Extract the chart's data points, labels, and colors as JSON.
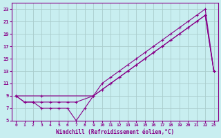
{
  "xlabel": "Windchill (Refroidissement éolien,°C)",
  "bg_color": "#c8eef0",
  "line_color": "#880088",
  "grid_color": "#aacccc",
  "xlim": [
    -0.5,
    23.5
  ],
  "ylim": [
    5,
    24
  ],
  "yticks": [
    5,
    7,
    9,
    11,
    13,
    15,
    17,
    19,
    21,
    23
  ],
  "xticks": [
    0,
    1,
    2,
    3,
    4,
    5,
    6,
    7,
    8,
    9,
    10,
    11,
    12,
    13,
    14,
    15,
    16,
    17,
    18,
    19,
    20,
    21,
    22,
    23
  ],
  "line1_x": [
    0,
    1,
    2,
    3,
    4,
    5,
    6,
    7,
    8,
    9,
    10,
    11,
    12,
    13,
    14,
    15,
    16,
    17,
    18,
    19,
    20,
    21,
    22,
    23
  ],
  "line1_y": [
    9,
    8,
    8,
    7,
    7,
    7,
    7,
    5,
    7,
    9,
    10,
    11,
    12,
    13,
    14,
    15,
    16,
    17,
    18,
    19,
    20,
    21,
    22,
    13
  ],
  "line2_x": [
    0,
    1,
    2,
    3,
    4,
    5,
    6,
    7,
    9,
    10,
    11,
    12,
    13,
    14,
    15,
    16,
    17,
    18,
    19,
    20,
    21,
    22,
    23
  ],
  "line2_y": [
    9,
    8,
    8,
    8,
    8,
    8,
    8,
    8,
    9,
    11,
    12,
    13,
    14,
    15,
    16,
    17,
    18,
    19,
    20,
    21,
    22,
    23,
    13
  ],
  "line3_x": [
    0,
    3,
    9,
    10,
    11,
    12,
    13,
    14,
    15,
    16,
    17,
    18,
    19,
    20,
    21,
    22,
    23
  ],
  "line3_y": [
    9,
    9,
    9,
    10,
    11,
    12,
    13,
    14,
    15,
    16,
    17,
    18,
    19,
    20,
    21,
    22,
    13
  ]
}
